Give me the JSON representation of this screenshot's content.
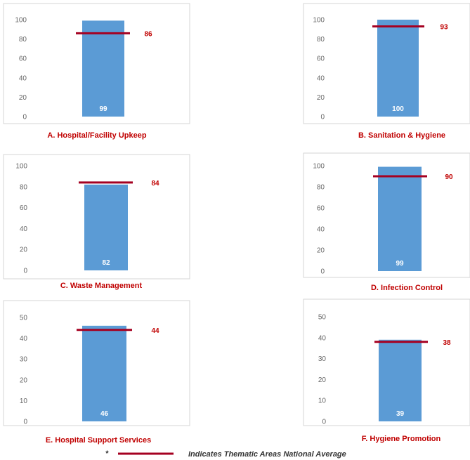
{
  "colors": {
    "bar": "#5b9bd5",
    "average_line": "#a50021",
    "caption": "#c00000"
  },
  "chart_data": [
    {
      "type": "bar",
      "caption": "A. Hospital/Facility Upkeep",
      "value": 99,
      "average": 86,
      "ylim": [
        0,
        100
      ],
      "ticks": [
        0,
        20,
        40,
        60,
        80,
        100
      ]
    },
    {
      "type": "bar",
      "caption": "B. Sanitation & Hygiene",
      "value": 100,
      "average": 93,
      "ylim": [
        0,
        100
      ],
      "ticks": [
        0,
        20,
        40,
        60,
        80,
        100
      ]
    },
    {
      "type": "bar",
      "caption": "C. Waste Management",
      "value": 82,
      "average": 84,
      "ylim": [
        0,
        100
      ],
      "ticks": [
        0,
        20,
        40,
        60,
        80,
        100
      ]
    },
    {
      "type": "bar",
      "caption": "D. Infection Control",
      "value": 99,
      "average": 90,
      "ylim": [
        0,
        100
      ],
      "ticks": [
        0,
        20,
        40,
        60,
        80,
        100
      ]
    },
    {
      "type": "bar",
      "caption": "E. Hospital Support Services",
      "value": 46,
      "average": 44,
      "ylim": [
        0,
        50
      ],
      "ticks": [
        0,
        10,
        20,
        30,
        40,
        50
      ]
    },
    {
      "type": "bar",
      "caption": "F. Hygiene Promotion",
      "value": 39,
      "average": 38,
      "ylim": [
        0,
        50
      ],
      "ticks": [
        0,
        10,
        20,
        30,
        40,
        50
      ]
    }
  ],
  "legend": {
    "marker": "*",
    "text": "Indicates Thematic Areas National Average"
  }
}
